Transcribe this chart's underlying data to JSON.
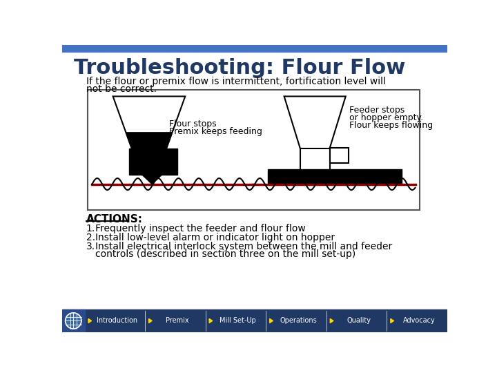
{
  "title": "Troubleshooting: Flour Flow",
  "title_color": "#1F3864",
  "bg_color": "#FFFFFF",
  "top_bar_color": "#4472C4",
  "nav_bg": "#1F3864",
  "nav_text_color": "#FFD700",
  "subtitle_line1": "If the flour or premix flow is intermittent, fortification level will",
  "subtitle_line2": "not be correct.",
  "actions_header": "ACTIONS:",
  "action1": "Frequently inspect the feeder and flour flow",
  "action2": "Install low-level alarm or indicator light on hopper",
  "action3a": "Install electrical interlock system between the mill and feeder",
  "action3b": "controls (described in section three on the mill set-up)",
  "nav_items": [
    "Introduction",
    "Premix",
    "Mill Set-Up",
    "Operations",
    "Quality",
    "Advocacy"
  ],
  "left_label_line1": "Flour stops",
  "left_label_line2": "Premix keeps feeding",
  "right_label_line1": "Feeder stops",
  "right_label_line2": "or hopper empty.",
  "right_label_line3": "Flour keeps flowing"
}
